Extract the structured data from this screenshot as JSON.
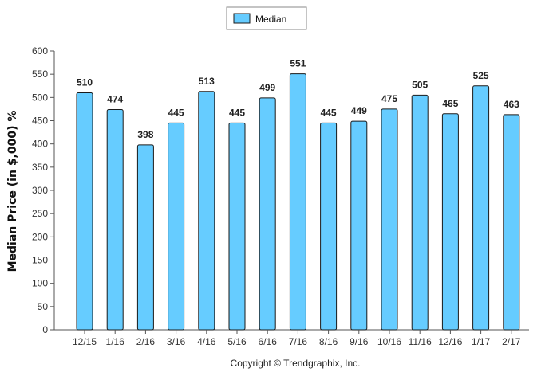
{
  "chart_data": {
    "type": "bar",
    "categories": [
      "12/15",
      "1/16",
      "2/16",
      "3/16",
      "4/16",
      "5/16",
      "6/16",
      "7/16",
      "8/16",
      "9/16",
      "10/16",
      "11/16",
      "12/16",
      "1/17",
      "2/17"
    ],
    "series": [
      {
        "name": "Median",
        "values": [
          510,
          474,
          398,
          445,
          513,
          445,
          499,
          551,
          445,
          449,
          475,
          505,
          465,
          525,
          463
        ]
      }
    ],
    "ylabel": "Median Price (in $,000) %",
    "xlabel": "",
    "ylim": [
      0,
      600
    ],
    "yticks": [
      0,
      50,
      100,
      150,
      200,
      250,
      300,
      350,
      400,
      450,
      500,
      550,
      600
    ],
    "grid": false,
    "legend": "top-center",
    "bar_color": "#66ccff",
    "bar_stroke": "#1a1a1a"
  },
  "footer": {
    "copyright": "Copyright © Trendgraphix, Inc."
  }
}
